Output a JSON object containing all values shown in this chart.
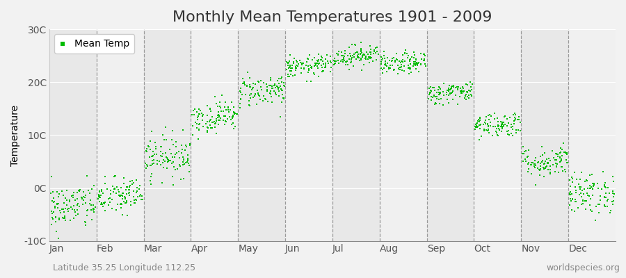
{
  "title": "Monthly Mean Temperatures 1901 - 2009",
  "ylabel": "Temperature",
  "bottom_left": "Latitude 35.25 Longitude 112.25",
  "bottom_right": "worldspecies.org",
  "legend_label": "Mean Temp",
  "dot_color": "#00bb00",
  "bg_color": "#f2f2f2",
  "plot_bg_even": "#e8e8e8",
  "plot_bg_odd": "#f0f0f0",
  "ylim": [
    -10,
    30
  ],
  "yticks": [
    -10,
    0,
    10,
    20,
    30
  ],
  "ytick_labels": [
    "-10C",
    "0C",
    "10C",
    "20C",
    "30C"
  ],
  "months": [
    "Jan",
    "Feb",
    "Mar",
    "Apr",
    "May",
    "Jun",
    "Jul",
    "Aug",
    "Sep",
    "Oct",
    "Nov",
    "Dec"
  ],
  "monthly_means": [
    -3.5,
    -1.5,
    6.0,
    13.5,
    18.5,
    23.0,
    25.0,
    23.5,
    18.0,
    12.0,
    5.0,
    -1.0
  ],
  "monthly_stds": [
    2.2,
    1.8,
    2.0,
    1.5,
    1.5,
    1.0,
    1.0,
    1.0,
    1.0,
    1.2,
    1.5,
    2.0
  ],
  "n_years": 109,
  "title_fontsize": 16,
  "axis_label_fontsize": 10,
  "tick_fontsize": 10,
  "annotation_fontsize": 9
}
